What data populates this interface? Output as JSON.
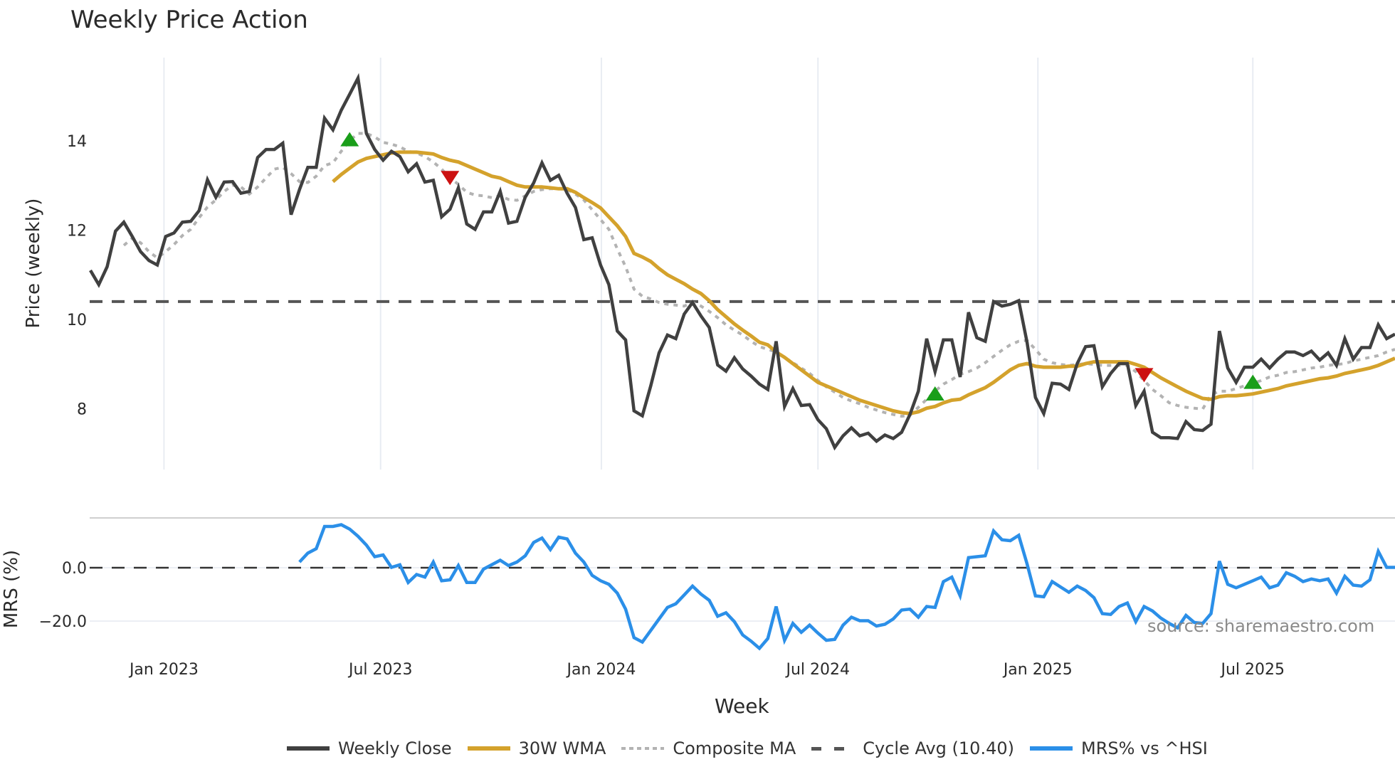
{
  "title": "Weekly Price Action",
  "source_text": "source: sharemaestro.com",
  "x_axis_title": "Week",
  "legend": [
    {
      "label": "Weekly Close",
      "color": "#404040",
      "style": "solid"
    },
    {
      "label": "30W WMA",
      "color": "#d4a22c",
      "style": "solid"
    },
    {
      "label": "Composite MA",
      "color": "#b3b3b3",
      "style": "dotted"
    },
    {
      "label": "Cycle Avg (10.40)",
      "color": "#555555",
      "style": "dashed"
    },
    {
      "label": "MRS% vs ^HSI",
      "color": "#2b8fe8",
      "style": "solid"
    }
  ],
  "chart_data": [
    {
      "type": "line",
      "title": "Weekly Price Action",
      "xlabel": "Week",
      "ylabel": "Price (weekly)",
      "x_tick_labels": [
        "Jan 2023",
        "Jul 2023",
        "Jan 2024",
        "Jul 2024",
        "Jan 2025",
        "Jul 2025"
      ],
      "x_tick_index": [
        8.8,
        34.7,
        61.1,
        87.0,
        113.3,
        139.0
      ],
      "y_ticks": [
        8,
        10,
        12,
        14
      ],
      "ylim": [
        6.4,
        16.0
      ],
      "grid": "vertical only",
      "week_count": 157,
      "series": [
        {
          "name": "Weekly Close",
          "color": "#404040",
          "start_index": 0,
          "values": [
            11.1,
            10.78,
            11.18,
            11.98,
            12.18,
            11.86,
            11.52,
            11.32,
            11.22,
            11.86,
            11.94,
            12.18,
            12.2,
            12.44,
            13.13,
            12.74,
            13.08,
            13.09,
            12.83,
            12.87,
            13.63,
            13.81,
            13.81,
            13.95,
            12.35,
            12.91,
            13.41,
            13.41,
            14.51,
            14.25,
            14.69,
            15.05,
            15.41,
            14.17,
            13.81,
            13.57,
            13.77,
            13.65,
            13.31,
            13.49,
            13.08,
            13.12,
            12.3,
            12.47,
            12.95,
            12.14,
            12.02,
            12.41,
            12.41,
            12.87,
            12.16,
            12.2,
            12.74,
            13.06,
            13.51,
            13.12,
            13.23,
            12.83,
            12.51,
            11.79,
            11.83,
            11.22,
            10.78,
            9.74,
            9.54,
            7.95,
            7.84,
            8.51,
            9.25,
            9.65,
            9.57,
            10.12,
            10.38,
            10.08,
            9.82,
            8.98,
            8.84,
            9.14,
            8.89,
            8.73,
            8.55,
            8.43,
            9.51,
            8.05,
            8.45,
            8.07,
            8.09,
            7.75,
            7.55,
            7.13,
            7.39,
            7.57,
            7.39,
            7.45,
            7.27,
            7.41,
            7.33,
            7.47,
            7.87,
            8.39,
            9.57,
            8.83,
            9.54,
            9.54,
            8.71,
            10.16,
            9.59,
            9.51,
            10.4,
            10.3,
            10.34,
            10.42,
            9.49,
            8.25,
            7.89,
            8.57,
            8.55,
            8.43,
            9.01,
            9.39,
            9.41,
            8.49,
            8.79,
            9.01,
            9.01,
            8.07,
            8.39,
            7.47,
            7.35,
            7.35,
            7.33,
            7.71,
            7.53,
            7.51,
            7.65,
            9.74,
            8.91,
            8.59,
            8.93,
            8.93,
            9.11,
            8.91,
            9.11,
            9.27,
            9.27,
            9.19,
            9.29,
            9.09,
            9.25,
            8.97,
            9.57,
            9.11,
            9.37,
            9.37,
            9.88,
            9.57,
            9.67
          ]
        },
        {
          "name": "30W WMA",
          "color": "#d4a22c",
          "start_index": 29,
          "values": [
            13.09,
            13.25,
            13.39,
            13.53,
            13.61,
            13.65,
            13.69,
            13.73,
            13.75,
            13.75,
            13.75,
            13.73,
            13.71,
            13.63,
            13.57,
            13.53,
            13.45,
            13.37,
            13.29,
            13.21,
            13.17,
            13.09,
            13.01,
            12.97,
            12.97,
            12.97,
            12.95,
            12.93,
            12.93,
            12.85,
            12.73,
            12.62,
            12.5,
            12.3,
            12.1,
            11.86,
            11.48,
            11.4,
            11.3,
            11.14,
            11.0,
            10.9,
            10.8,
            10.68,
            10.58,
            10.42,
            10.22,
            10.06,
            9.9,
            9.76,
            9.63,
            9.49,
            9.43,
            9.27,
            9.15,
            9.01,
            8.87,
            8.73,
            8.59,
            8.51,
            8.43,
            8.35,
            8.27,
            8.19,
            8.13,
            8.07,
            8.01,
            7.95,
            7.91,
            7.89,
            7.93,
            8.01,
            8.05,
            8.13,
            8.19,
            8.21,
            8.31,
            8.39,
            8.47,
            8.59,
            8.73,
            8.87,
            8.97,
            9.01,
            8.95,
            8.93,
            8.93,
            8.93,
            8.95,
            8.95,
            9.01,
            9.05,
            9.05,
            9.05,
            9.05,
            9.05,
            8.99,
            8.93,
            8.81,
            8.69,
            8.59,
            8.49,
            8.39,
            8.31,
            8.23,
            8.21,
            8.27,
            8.29,
            8.29,
            8.31,
            8.33,
            8.37,
            8.41,
            8.45,
            8.51,
            8.55,
            8.59,
            8.63,
            8.67,
            8.69,
            8.73,
            8.79,
            8.83,
            8.87,
            8.91,
            8.97,
            9.05,
            9.13
          ]
        },
        {
          "name": "Composite MA",
          "color": "#b3b3b3",
          "start_index": 4,
          "values": [
            11.66,
            11.82,
            11.72,
            11.52,
            11.38,
            11.52,
            11.68,
            11.88,
            12.02,
            12.28,
            12.52,
            12.68,
            12.87,
            13.01,
            12.97,
            12.81,
            12.97,
            13.17,
            13.37,
            13.41,
            13.27,
            13.09,
            13.07,
            13.21,
            13.45,
            13.51,
            13.77,
            14.01,
            14.17,
            14.17,
            14.09,
            13.97,
            13.93,
            13.87,
            13.77,
            13.73,
            13.65,
            13.53,
            13.37,
            13.17,
            13.03,
            12.85,
            12.79,
            12.77,
            12.73,
            12.77,
            12.69,
            12.67,
            12.77,
            12.87,
            12.91,
            12.93,
            12.93,
            12.91,
            12.81,
            12.68,
            12.46,
            12.24,
            12.02,
            11.58,
            11.18,
            10.68,
            10.52,
            10.46,
            10.38,
            10.34,
            10.32,
            10.3,
            10.38,
            10.3,
            10.18,
            10.04,
            9.88,
            9.76,
            9.65,
            9.51,
            9.39,
            9.33,
            9.27,
            9.15,
            9.03,
            8.91,
            8.79,
            8.63,
            8.49,
            8.37,
            8.25,
            8.17,
            8.11,
            8.03,
            7.97,
            7.91,
            7.87,
            7.83,
            7.85,
            8.03,
            8.21,
            8.39,
            8.55,
            8.65,
            8.77,
            8.83,
            8.91,
            9.03,
            9.17,
            9.31,
            9.43,
            9.51,
            9.53,
            9.33,
            9.11,
            9.03,
            8.99,
            8.97,
            8.99,
            9.01,
            8.99,
            8.97,
            8.97,
            8.97,
            8.97,
            8.83,
            8.63,
            8.43,
            8.29,
            8.13,
            8.07,
            8.03,
            8.01,
            7.99,
            8.31,
            8.39,
            8.39,
            8.45,
            8.51,
            8.57,
            8.63,
            8.71,
            8.75,
            8.81,
            8.83,
            8.87,
            8.91,
            8.93,
            8.97,
            8.99,
            9.01,
            9.07,
            9.11,
            9.15,
            9.19,
            9.27,
            9.33
          ]
        }
      ],
      "reference_lines": [
        {
          "name": "Cycle Avg (10.40)",
          "value": 10.4,
          "color": "#555555",
          "style": "dashed"
        }
      ],
      "signals": [
        {
          "type": "buy",
          "marker": "triangle-up",
          "color": "#1a9e1a",
          "index": 31,
          "value": 14.01
        },
        {
          "type": "sell",
          "marker": "triangle-down",
          "color": "#cc1111",
          "index": 43,
          "value": 13.17
        },
        {
          "type": "buy",
          "marker": "triangle-up",
          "color": "#1a9e1a",
          "index": 101,
          "value": 8.31
        },
        {
          "type": "sell",
          "marker": "triangle-down",
          "color": "#cc1111",
          "index": 126,
          "value": 8.75
        },
        {
          "type": "buy",
          "marker": "triangle-up",
          "color": "#1a9e1a",
          "index": 139,
          "value": 8.57
        }
      ]
    },
    {
      "type": "line",
      "title": "",
      "xlabel": "Week",
      "ylabel": "MRS (%)",
      "y_ticks": [
        0.0,
        -20.0
      ],
      "y_tick_labels": [
        "0.0",
        "−20.0"
      ],
      "ylim": [
        -30.8,
        18.7
      ],
      "grid": "horizontal at ticks",
      "reference_lines": [
        {
          "name": "zero",
          "value": 0.0,
          "color": "#333333",
          "style": "dashed"
        }
      ],
      "series": [
        {
          "name": "MRS% vs ^HSI",
          "color": "#2b8fe8",
          "start_index": 25,
          "values": [
            2.13,
            5.47,
            7.13,
            15.47,
            15.47,
            16.13,
            14.47,
            11.8,
            8.47,
            4.13,
            4.8,
            0.13,
            1.13,
            -5.53,
            -2.53,
            -3.53,
            2.13,
            -4.87,
            -4.53,
            0.8,
            -5.53,
            -5.53,
            -0.53,
            1.13,
            2.8,
            0.8,
            2.13,
            4.47,
            9.47,
            11.13,
            6.8,
            11.47,
            10.8,
            5.47,
            2.13,
            -2.87,
            -4.87,
            -6.2,
            -9.53,
            -15.53,
            -26.2,
            -27.87,
            -23.53,
            -19.2,
            -14.87,
            -13.53,
            -10.2,
            -6.87,
            -9.87,
            -12.2,
            -18.2,
            -16.87,
            -20.2,
            -25.2,
            -27.53,
            -30.2,
            -26.53,
            -14.53,
            -27.2,
            -20.87,
            -24.2,
            -21.53,
            -24.53,
            -27.2,
            -26.87,
            -21.53,
            -18.53,
            -19.87,
            -19.87,
            -21.87,
            -21.2,
            -19.2,
            -15.87,
            -15.53,
            -18.53,
            -14.53,
            -14.87,
            -5.2,
            -3.53,
            -10.53,
            3.8,
            4.13,
            4.47,
            13.8,
            10.47,
            10.13,
            12.13,
            1.47,
            -10.53,
            -10.87,
            -5.2,
            -7.2,
            -9.2,
            -6.87,
            -8.53,
            -11.2,
            -17.2,
            -17.53,
            -14.53,
            -13.2,
            -20.2,
            -14.53,
            -16.2,
            -18.87,
            -20.87,
            -22.53,
            -17.87,
            -20.53,
            -20.87,
            -17.2,
            2.47,
            -6.2,
            -7.53,
            -6.2,
            -4.87,
            -3.53,
            -7.53,
            -6.53,
            -1.87,
            -3.2,
            -5.2,
            -4.2,
            -4.87,
            -4.2,
            -9.53,
            -3.2,
            -6.53,
            -6.87,
            -4.53,
            6.13,
            0.13,
            0.13
          ]
        }
      ]
    }
  ]
}
